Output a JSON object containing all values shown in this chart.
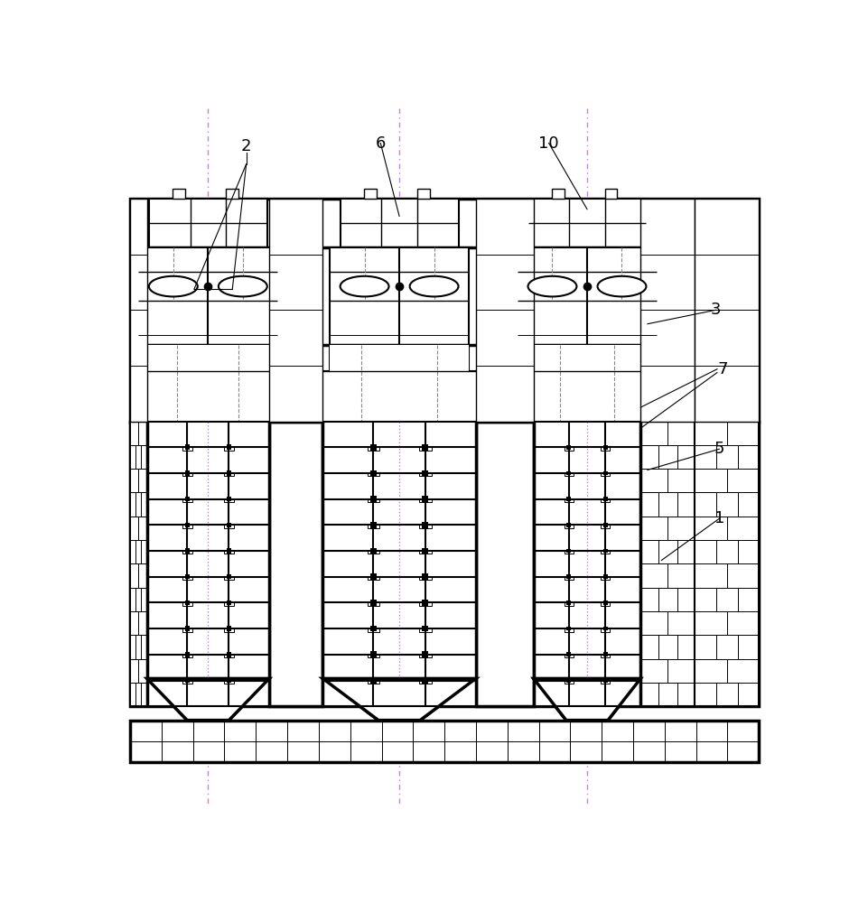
{
  "bg_color": "#ffffff",
  "line_color": "#000000",
  "purple_color": "#bb88cc",
  "fig_w": 9.61,
  "fig_h": 10.0,
  "dpi": 100,
  "label_fs": 13,
  "labels": [
    "2",
    "6",
    "10",
    "3",
    "7",
    "5",
    "1"
  ]
}
